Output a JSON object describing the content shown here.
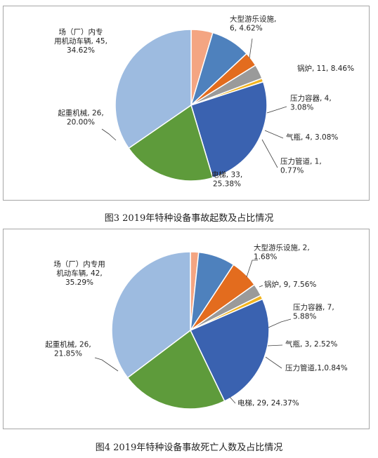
{
  "chart_data": [
    {
      "type": "pie",
      "title": "",
      "caption": "图3 2019年特种设备事故起数及占比情况",
      "slices": [
        {
          "name": "大型游乐设施",
          "value": 6,
          "percent": "4.62%",
          "color": "#F4A582",
          "label_lines": [
            "大型游乐设施,",
            "6, 4.62%"
          ]
        },
        {
          "name": "锅炉",
          "value": 11,
          "percent": "8.46%",
          "color": "#4E81BD",
          "label_lines": [
            "锅炉, 11, 8.46%"
          ]
        },
        {
          "name": "压力容器",
          "value": 4,
          "percent": "3.08%",
          "color": "#E36C1E",
          "label_lines": [
            "压力容器, 4,",
            "3.08%"
          ]
        },
        {
          "name": "气瓶",
          "value": 4,
          "percent": "3.08%",
          "color": "#9A9A9A",
          "label_lines": [
            "气瓶, 4, 3.08%"
          ]
        },
        {
          "name": "压力管道",
          "value": 1,
          "percent": "0.77%",
          "color": "#F2B41E",
          "label_lines": [
            "压力管道, 1,",
            "0.77%"
          ]
        },
        {
          "name": "电梯",
          "value": 33,
          "percent": "25.38%",
          "color": "#3A62B0",
          "label_lines": [
            "电梯, 33,",
            "25.38%"
          ]
        },
        {
          "name": "起重机械",
          "value": 26,
          "percent": "20.00%",
          "color": "#5E9B3B",
          "label_lines": [
            "起重机械, 26,",
            "20.00%"
          ]
        },
        {
          "name": "场（厂）内专用机动车辆",
          "value": 45,
          "percent": "34.62%",
          "color": "#9DBBE0",
          "label_lines": [
            "场（厂）内专",
            "用机动车辆, 45,",
            "34.62%"
          ]
        }
      ]
    },
    {
      "type": "pie",
      "title": "",
      "caption": "图4 2019年特种设备事故死亡人数及占比情况",
      "slices": [
        {
          "name": "大型游乐设施",
          "value": 2,
          "percent": "1.68%",
          "color": "#F4A582",
          "label_lines": [
            "大型游乐设施, 2,",
            "1.68%"
          ]
        },
        {
          "name": "锅炉",
          "value": 9,
          "percent": "7.56%",
          "color": "#4E81BD",
          "label_lines": [
            "锅炉, 9, 7.56%"
          ]
        },
        {
          "name": "压力容器",
          "value": 7,
          "percent": "5.88%",
          "color": "#E36C1E",
          "label_lines": [
            "压力容器, 7,",
            "5.88%"
          ]
        },
        {
          "name": "气瓶",
          "value": 3,
          "percent": "2.52%",
          "color": "#9A9A9A",
          "label_lines": [
            "气瓶, 3, 2.52%"
          ]
        },
        {
          "name": "压力管道",
          "value": 1,
          "percent": "0.84%",
          "color": "#F2B41E",
          "label_lines": [
            "压力管道,1,0.84%"
          ]
        },
        {
          "name": "电梯",
          "value": 29,
          "percent": "24.37%",
          "color": "#3A62B0",
          "label_lines": [
            "电梯, 29, 24.37%"
          ]
        },
        {
          "name": "起重机械",
          "value": 26,
          "percent": "21.85%",
          "color": "#5E9B3B",
          "label_lines": [
            "起重机械, 26,",
            "21.85%"
          ]
        },
        {
          "name": "场（厂）内专用机动车辆",
          "value": 42,
          "percent": "35.29%",
          "color": "#9DBBE0",
          "label_lines": [
            "场（厂）内专用",
            "机动车辆, 42,",
            "35.29%"
          ]
        }
      ]
    }
  ]
}
